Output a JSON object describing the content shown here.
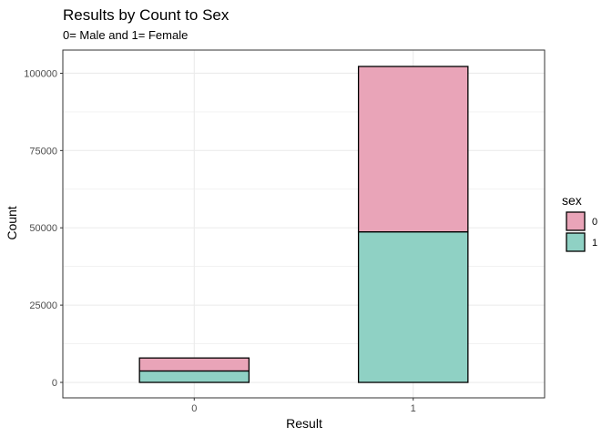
{
  "chart_data": {
    "type": "bar",
    "stacked": true,
    "title": "Results by Count to Sex",
    "subtitle": "0= Male and 1= Female",
    "xlabel": "Result",
    "ylabel": "Count",
    "categories": [
      "0",
      "1"
    ],
    "series": [
      {
        "name": "0",
        "values": [
          4200,
          53500
        ],
        "color": "#e9a4b8"
      },
      {
        "name": "1",
        "values": [
          3700,
          48700
        ],
        "color": "#8fd1c4"
      }
    ],
    "ylim": [
      -5000,
      107500
    ],
    "yticks": [
      0,
      25000,
      50000,
      75000,
      100000
    ],
    "ytick_labels": [
      "0",
      "25000",
      "50000",
      "75000",
      "100000"
    ],
    "grid": true,
    "legend": {
      "title": "sex",
      "position": "right",
      "entries": [
        "0",
        "1"
      ]
    },
    "colors": {
      "border": "#000000",
      "grid": "#ebebeb",
      "panel_border": "#333333"
    }
  }
}
